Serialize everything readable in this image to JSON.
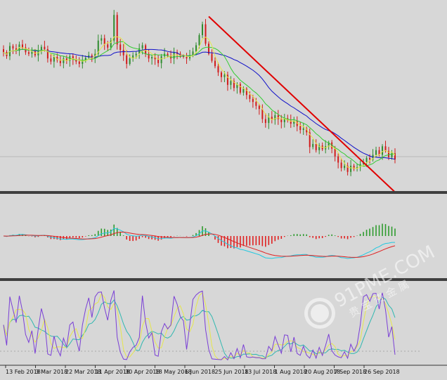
{
  "colors": {
    "background": "#d7d7d7",
    "bull_candle": "#2e8b2e",
    "bear_candle": "#d11a1a",
    "ma_slow": "#1010c8",
    "ma_mid": "#33cc33",
    "ma_fast": "#e6e64d",
    "trendline": "#e00000",
    "macd_hist_up": "#2e9b2e",
    "macd_hist_down": "#e02020",
    "macd_line": "#20c8e0",
    "macd_signal": "#e02020",
    "stoch_k": "#7a3fd6",
    "stoch_d": "#e6e64d",
    "stoch_slow": "#30b8b0",
    "separator": "#555555"
  },
  "watermark": {
    "text": "91PME.COM",
    "subtext": "贵 宝 资 金 属"
  },
  "chart_data": [
    {
      "type": "candlestick",
      "panel": "price",
      "x_tick_labels": [
        "13 Feb 2018",
        "3 Mar 2018",
        "22 Mar 2018",
        "11 Apr 2018",
        "30 Apr 2018",
        "18 May 2018",
        "6 Jun 2018",
        "25 Jun 2018",
        "13 Jul 2018",
        "1 Aug 2018",
        "20 Aug 2018",
        "7 Sep 2018",
        "26 Sep 2018"
      ],
      "close": [
        1330,
        1325,
        1338,
        1335,
        1332,
        1340,
        1336,
        1330,
        1328,
        1331,
        1326,
        1332,
        1337,
        1334,
        1322,
        1318,
        1324,
        1320,
        1316,
        1322,
        1319,
        1325,
        1321,
        1318,
        1315,
        1320,
        1323,
        1326,
        1322,
        1328,
        1345,
        1348,
        1340,
        1336,
        1345,
        1378,
        1340,
        1333,
        1326,
        1315,
        1322,
        1326,
        1328,
        1335,
        1339,
        1328,
        1322,
        1324,
        1321,
        1316,
        1325,
        1328,
        1326,
        1322,
        1330,
        1328,
        1325,
        1324,
        1322,
        1326,
        1331,
        1339,
        1352,
        1366,
        1341,
        1328,
        1319,
        1312,
        1304,
        1298,
        1301,
        1288,
        1293,
        1284,
        1289,
        1278,
        1283,
        1275,
        1270,
        1266,
        1261,
        1257,
        1244,
        1239,
        1247,
        1243,
        1249,
        1244,
        1240,
        1245,
        1242,
        1238,
        1241,
        1235,
        1230,
        1232,
        1227,
        1208,
        1212,
        1204,
        1210,
        1205,
        1209,
        1214,
        1206,
        1196,
        1188,
        1181,
        1184,
        1176,
        1184,
        1180,
        1182,
        1186,
        1189,
        1194,
        1192,
        1198,
        1204,
        1198,
        1209,
        1203,
        1195,
        1200,
        1192
      ],
      "ylim": [
        1155,
        1390
      ],
      "overlays": [
        "ma_fast",
        "ma_mid",
        "ma_slow"
      ],
      "trendline": {
        "from_index": 65,
        "from_value": 1376,
        "to_index": 124,
        "to_value": 1150
      }
    },
    {
      "type": "bar+line",
      "panel": "macd",
      "series": [
        {
          "role": "histogram"
        },
        {
          "role": "macd_line"
        },
        {
          "role": "signal_line"
        }
      ]
    },
    {
      "type": "line",
      "panel": "stochastic",
      "ylim": [
        0,
        100
      ],
      "series": [
        {
          "role": "k"
        },
        {
          "role": "d"
        },
        {
          "role": "slow"
        }
      ]
    }
  ]
}
